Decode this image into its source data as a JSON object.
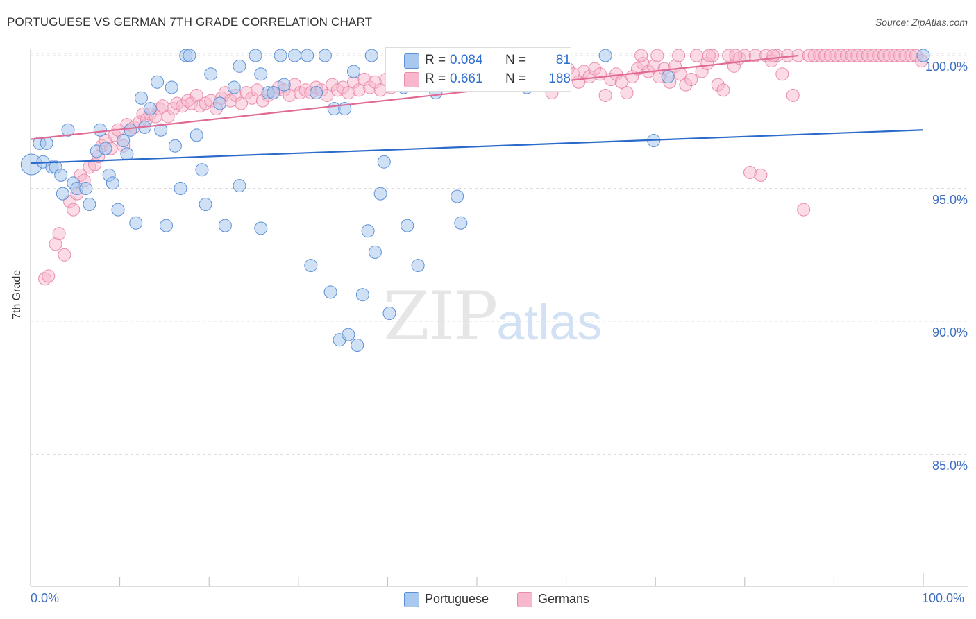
{
  "header": {
    "title": "PORTUGUESE VS GERMAN 7TH GRADE CORRELATION CHART",
    "source": "Source: ZipAtlas.com"
  },
  "watermark": {
    "zip": "ZIP",
    "atlas": "atlas"
  },
  "legend": {
    "r_label": "R =",
    "n_label": "N =",
    "portuguese": {
      "r": "0.084",
      "n": "81"
    },
    "germans": {
      "r": "0.661",
      "n": "188"
    }
  },
  "colors": {
    "portuguese_fill": "#a9c8ef",
    "portuguese_stroke": "#5b8fd6",
    "portuguese_line": "#2a6acb",
    "germans_fill": "#f7b8cc",
    "germans_stroke": "#e98cab",
    "germans_line": "#e06a94",
    "axis_text": "#3f6fbf"
  },
  "chart_data": {
    "type": "scatter",
    "title": "PORTUGUESE VS GERMAN 7TH GRADE CORRELATION CHART",
    "xlabel": "",
    "ylabel": "7th Grade",
    "xlim": [
      0,
      100
    ],
    "ylim": [
      80.5,
      100.7
    ],
    "x_tick_labels": [
      "0.0%",
      "100.0%"
    ],
    "y_ticks": [
      {
        "value": 100,
        "label": "100.0%"
      },
      {
        "value": 95,
        "label": "95.0%"
      },
      {
        "value": 90,
        "label": "90.0%"
      },
      {
        "value": 85,
        "label": "85.0%"
      }
    ],
    "grid": "horizontal dashed",
    "legend_position": "top-center and bottom",
    "series": [
      {
        "name": "Portuguese",
        "r": 0.084,
        "n": 81,
        "trend": {
          "x": [
            0,
            100
          ],
          "y": [
            95.95,
            97.2
          ]
        },
        "points": [
          [
            0.1,
            95.9
          ],
          [
            1.0,
            96.7
          ],
          [
            1.4,
            96.0
          ],
          [
            1.8,
            96.7
          ],
          [
            2.4,
            95.8
          ],
          [
            2.8,
            95.8
          ],
          [
            3.4,
            95.5
          ],
          [
            3.6,
            94.8
          ],
          [
            4.2,
            97.2
          ],
          [
            4.8,
            95.2
          ],
          [
            5.2,
            95.0
          ],
          [
            6.2,
            95.0
          ],
          [
            6.6,
            94.4
          ],
          [
            7.4,
            96.4
          ],
          [
            7.8,
            97.2
          ],
          [
            8.4,
            96.5
          ],
          [
            8.8,
            95.5
          ],
          [
            9.2,
            95.2
          ],
          [
            9.8,
            94.2
          ],
          [
            10.4,
            96.8
          ],
          [
            10.8,
            96.3
          ],
          [
            11.2,
            97.2
          ],
          [
            11.8,
            93.7
          ],
          [
            12.4,
            98.4
          ],
          [
            12.8,
            97.3
          ],
          [
            13.4,
            98.0
          ],
          [
            14.2,
            99.0
          ],
          [
            14.6,
            97.2
          ],
          [
            15.2,
            93.6
          ],
          [
            15.8,
            98.8
          ],
          [
            16.2,
            96.6
          ],
          [
            16.8,
            95.0
          ],
          [
            17.4,
            100.0
          ],
          [
            17.8,
            100.0
          ],
          [
            18.6,
            97.0
          ],
          [
            19.2,
            95.7
          ],
          [
            19.6,
            94.4
          ],
          [
            20.2,
            99.3
          ],
          [
            21.2,
            98.2
          ],
          [
            21.8,
            93.6
          ],
          [
            22.8,
            98.8
          ],
          [
            23.4,
            95.1
          ],
          [
            23.4,
            99.6
          ],
          [
            25.2,
            100.0
          ],
          [
            25.8,
            99.3
          ],
          [
            25.8,
            93.5
          ],
          [
            26.6,
            98.6
          ],
          [
            27.2,
            98.6
          ],
          [
            28.0,
            100.0
          ],
          [
            28.4,
            98.9
          ],
          [
            29.6,
            100.0
          ],
          [
            31.0,
            100.0
          ],
          [
            31.4,
            92.1
          ],
          [
            32.0,
            98.6
          ],
          [
            33.0,
            100.0
          ],
          [
            33.6,
            91.1
          ],
          [
            34.0,
            98.0
          ],
          [
            34.6,
            89.3
          ],
          [
            35.2,
            98.0
          ],
          [
            35.6,
            89.5
          ],
          [
            36.2,
            99.4
          ],
          [
            36.6,
            89.1
          ],
          [
            37.2,
            91.0
          ],
          [
            37.8,
            93.4
          ],
          [
            38.2,
            100.0
          ],
          [
            38.6,
            92.6
          ],
          [
            39.2,
            94.8
          ],
          [
            39.6,
            96.0
          ],
          [
            40.2,
            90.3
          ],
          [
            41.8,
            98.8
          ],
          [
            42.2,
            93.6
          ],
          [
            43.4,
            92.1
          ],
          [
            44.6,
            99.0
          ],
          [
            45.4,
            98.6
          ],
          [
            47.8,
            94.7
          ],
          [
            48.2,
            93.7
          ],
          [
            55.6,
            98.8
          ],
          [
            64.4,
            100.0
          ],
          [
            69.8,
            96.8
          ],
          [
            71.4,
            99.2
          ],
          [
            100.0,
            100.0
          ]
        ]
      },
      {
        "name": "Germans",
        "r": 0.661,
        "n": 188,
        "trend": {
          "x": [
            0,
            86
          ],
          "y": [
            96.85,
            100.0
          ]
        },
        "points": [
          [
            1.6,
            91.6
          ],
          [
            2.0,
            91.7
          ],
          [
            2.8,
            92.9
          ],
          [
            3.2,
            93.3
          ],
          [
            3.8,
            92.5
          ],
          [
            4.4,
            94.5
          ],
          [
            4.8,
            94.2
          ],
          [
            5.2,
            94.8
          ],
          [
            5.6,
            95.5
          ],
          [
            6.0,
            95.3
          ],
          [
            6.6,
            95.8
          ],
          [
            7.2,
            95.9
          ],
          [
            7.6,
            96.2
          ],
          [
            8.0,
            96.6
          ],
          [
            8.4,
            96.8
          ],
          [
            9.0,
            96.5
          ],
          [
            9.4,
            97.0
          ],
          [
            9.8,
            97.2
          ],
          [
            10.4,
            96.6
          ],
          [
            10.8,
            97.4
          ],
          [
            11.2,
            97.2
          ],
          [
            11.6,
            97.3
          ],
          [
            12.2,
            97.5
          ],
          [
            12.6,
            97.8
          ],
          [
            13.0,
            97.6
          ],
          [
            13.4,
            97.8
          ],
          [
            14.0,
            97.7
          ],
          [
            14.4,
            98.0
          ],
          [
            14.8,
            98.1
          ],
          [
            15.4,
            97.7
          ],
          [
            16.0,
            98.0
          ],
          [
            16.4,
            98.2
          ],
          [
            17.0,
            98.1
          ],
          [
            17.6,
            98.3
          ],
          [
            18.0,
            98.2
          ],
          [
            18.6,
            98.5
          ],
          [
            19.0,
            98.1
          ],
          [
            19.6,
            98.2
          ],
          [
            20.2,
            98.3
          ],
          [
            20.8,
            98.0
          ],
          [
            21.4,
            98.4
          ],
          [
            21.8,
            98.6
          ],
          [
            22.4,
            98.3
          ],
          [
            23.0,
            98.5
          ],
          [
            23.6,
            98.2
          ],
          [
            24.2,
            98.6
          ],
          [
            24.8,
            98.4
          ],
          [
            25.4,
            98.7
          ],
          [
            26.0,
            98.3
          ],
          [
            26.6,
            98.5
          ],
          [
            27.2,
            98.6
          ],
          [
            27.8,
            98.8
          ],
          [
            28.4,
            98.7
          ],
          [
            29.0,
            98.5
          ],
          [
            29.6,
            98.9
          ],
          [
            30.2,
            98.6
          ],
          [
            30.8,
            98.7
          ],
          [
            31.4,
            98.6
          ],
          [
            32.0,
            98.8
          ],
          [
            32.6,
            98.7
          ],
          [
            33.2,
            98.5
          ],
          [
            33.8,
            98.9
          ],
          [
            34.4,
            98.7
          ],
          [
            35.0,
            98.8
          ],
          [
            35.6,
            98.6
          ],
          [
            36.2,
            99.0
          ],
          [
            36.8,
            98.7
          ],
          [
            37.4,
            99.1
          ],
          [
            38.0,
            98.8
          ],
          [
            38.6,
            99.0
          ],
          [
            39.2,
            98.7
          ],
          [
            39.8,
            99.1
          ],
          [
            40.4,
            98.8
          ],
          [
            41.0,
            98.9
          ],
          [
            41.6,
            99.0
          ],
          [
            42.2,
            99.2
          ],
          [
            42.8,
            98.9
          ],
          [
            43.4,
            99.1
          ],
          [
            44.0,
            99.0
          ],
          [
            44.6,
            99.3
          ],
          [
            45.2,
            99.0
          ],
          [
            45.8,
            99.1
          ],
          [
            46.4,
            99.2
          ],
          [
            47.0,
            98.9
          ],
          [
            47.6,
            99.2
          ],
          [
            48.2,
            99.3
          ],
          [
            48.8,
            99.1
          ],
          [
            49.4,
            99.0
          ],
          [
            50.0,
            99.3
          ],
          [
            50.6,
            99.2
          ],
          [
            51.2,
            99.1
          ],
          [
            51.8,
            99.4
          ],
          [
            52.4,
            99.2
          ],
          [
            53.0,
            99.3
          ],
          [
            53.6,
            99.1
          ],
          [
            54.2,
            99.4
          ],
          [
            54.8,
            99.2
          ],
          [
            55.4,
            99.3
          ],
          [
            56.0,
            99.1
          ],
          [
            56.6,
            99.4
          ],
          [
            57.2,
            99.3
          ],
          [
            57.8,
            99.2
          ],
          [
            58.4,
            98.6
          ],
          [
            59.0,
            99.4
          ],
          [
            59.6,
            99.2
          ],
          [
            60.2,
            99.5
          ],
          [
            60.8,
            99.3
          ],
          [
            61.4,
            99.0
          ],
          [
            62.0,
            99.4
          ],
          [
            62.6,
            99.2
          ],
          [
            63.2,
            99.5
          ],
          [
            63.8,
            99.3
          ],
          [
            64.4,
            98.5
          ],
          [
            65.0,
            99.1
          ],
          [
            65.6,
            99.3
          ],
          [
            66.2,
            99.0
          ],
          [
            66.8,
            98.6
          ],
          [
            67.4,
            99.2
          ],
          [
            68.0,
            99.5
          ],
          [
            68.6,
            99.7
          ],
          [
            69.2,
            99.4
          ],
          [
            69.8,
            99.6
          ],
          [
            70.4,
            99.2
          ],
          [
            71.0,
            99.5
          ],
          [
            71.6,
            99.0
          ],
          [
            72.2,
            99.6
          ],
          [
            72.8,
            99.3
          ],
          [
            73.4,
            98.9
          ],
          [
            74.0,
            99.1
          ],
          [
            74.6,
            100.0
          ],
          [
            75.2,
            99.4
          ],
          [
            75.8,
            99.7
          ],
          [
            76.4,
            100.0
          ],
          [
            77.0,
            98.9
          ],
          [
            77.6,
            98.7
          ],
          [
            78.2,
            100.0
          ],
          [
            78.8,
            99.6
          ],
          [
            79.4,
            99.9
          ],
          [
            80.0,
            100.0
          ],
          [
            80.6,
            95.6
          ],
          [
            81.2,
            100.0
          ],
          [
            81.8,
            95.5
          ],
          [
            82.4,
            100.0
          ],
          [
            83.0,
            99.8
          ],
          [
            83.6,
            100.0
          ],
          [
            84.2,
            99.3
          ],
          [
            84.8,
            100.0
          ],
          [
            85.4,
            98.5
          ],
          [
            86.0,
            100.0
          ],
          [
            86.6,
            94.2
          ],
          [
            87.2,
            100.0
          ],
          [
            87.8,
            100.0
          ],
          [
            88.4,
            100.0
          ],
          [
            89.0,
            100.0
          ],
          [
            89.6,
            100.0
          ],
          [
            90.2,
            100.0
          ],
          [
            90.8,
            100.0
          ],
          [
            91.4,
            100.0
          ],
          [
            92.0,
            100.0
          ],
          [
            92.6,
            100.0
          ],
          [
            93.2,
            100.0
          ],
          [
            93.8,
            100.0
          ],
          [
            94.4,
            100.0
          ],
          [
            95.0,
            100.0
          ],
          [
            95.6,
            100.0
          ],
          [
            96.2,
            100.0
          ],
          [
            96.8,
            100.0
          ],
          [
            97.4,
            100.0
          ],
          [
            98.0,
            100.0
          ],
          [
            98.6,
            100.0
          ],
          [
            99.2,
            100.0
          ],
          [
            99.8,
            99.8
          ],
          [
            68.4,
            100.0
          ],
          [
            70.2,
            100.0
          ],
          [
            72.6,
            100.0
          ],
          [
            76.0,
            100.0
          ],
          [
            79.0,
            100.0
          ],
          [
            83.2,
            100.0
          ]
        ]
      }
    ]
  }
}
